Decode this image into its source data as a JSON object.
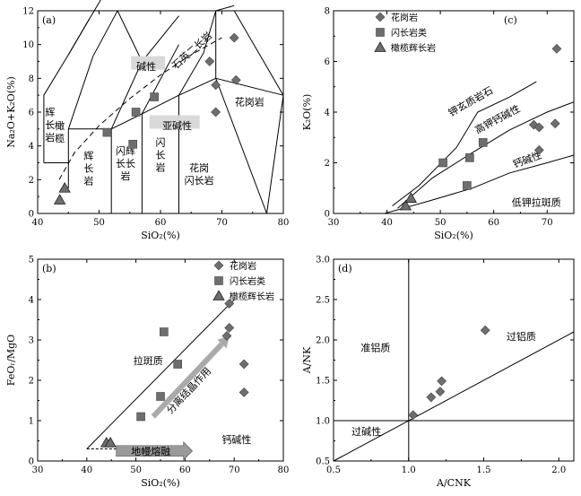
{
  "legend": {
    "granite": "花岗岩",
    "diorite": "闪长岩类",
    "gabbro": "橄榄辉长岩"
  },
  "chart_data": [
    {
      "panel": "(a)",
      "type": "scatter",
      "xlabel": "SiO₂(%)",
      "ylabel": "Na₂O+K₂O(%)",
      "xlim": [
        40,
        80
      ],
      "ylim": [
        0,
        12
      ],
      "xticks": [
        "40",
        "50",
        "60",
        "70",
        "80"
      ],
      "yticks": [
        "0",
        "2",
        "4",
        "6",
        "8",
        "10",
        "12"
      ],
      "fields": {
        "gabbro_olivine_1": "辉",
        "gabbro_olivine_2": "橄",
        "gabbro_olivine_3": "长",
        "gabbro_olivine_4": "榄",
        "gabbro_olivine_5": "岩",
        "gabbro_1": "辉",
        "gabbro_2": "长",
        "gabbro_3": "岩",
        "diorite_gabbro_1": "闪辉",
        "diorite_gabbro_2": "长长",
        "diorite_gabbro_3": "岩",
        "diorite_1": "闪",
        "diorite_2": "长",
        "diorite_3": "岩",
        "granodiorite_1": "花岗",
        "granodiorite_2": "闪长岩",
        "granite": "花岗岩",
        "quartz_syenite": "石英二长岩",
        "alkaline": "碱性",
        "subalkaline": "亚碱性"
      },
      "series": [
        {
          "name": "花岗岩",
          "marker": "diamond",
          "x": [
            68.0,
            69.0,
            72.3,
            72.0,
            69.0
          ],
          "y": [
            9.0,
            7.6,
            7.9,
            10.4,
            6.0
          ]
        },
        {
          "name": "闪长岩类",
          "marker": "square",
          "x": [
            51.3,
            55.5,
            56.0,
            59.0
          ],
          "y": [
            4.8,
            4.1,
            6.0,
            6.9
          ]
        },
        {
          "name": "橄榄辉长岩",
          "marker": "triangle",
          "x": [
            43.6,
            44.4
          ],
          "y": [
            0.8,
            1.5
          ]
        }
      ]
    },
    {
      "panel": "(b)",
      "type": "scatter",
      "xlabel": "SiO₂(%)",
      "ylabel": "FeOᵣ/MgO",
      "xlim": [
        30,
        80
      ],
      "ylim": [
        0,
        5
      ],
      "xticks": [
        "30",
        "40",
        "50",
        "60",
        "70",
        "80"
      ],
      "yticks": [
        "0",
        "1",
        "2",
        "3",
        "4",
        "5"
      ],
      "fields": {
        "tholeiitic": "拉斑质",
        "calcalkaline": "钙碱性",
        "fractional": "分离结晶作用",
        "mantle": "地幔熔融"
      },
      "series": [
        {
          "name": "花岗岩",
          "marker": "diamond",
          "x": [
            68.5,
            69.0,
            69.0,
            72.0,
            72.0
          ],
          "y": [
            3.1,
            3.3,
            3.9,
            2.4,
            1.7
          ]
        },
        {
          "name": "闪长岩类",
          "marker": "square",
          "x": [
            51.0,
            55.0,
            55.7,
            58.5
          ],
          "y": [
            1.1,
            1.6,
            3.2,
            2.4
          ]
        },
        {
          "name": "橄榄辉长岩",
          "marker": "triangle",
          "x": [
            44.0,
            44.8
          ],
          "y": [
            0.45,
            0.45
          ]
        }
      ]
    },
    {
      "panel": "(c)",
      "type": "scatter",
      "xlabel": "SiO₂(%)",
      "ylabel": "K₂O(%)",
      "xlim": [
        30,
        75
      ],
      "ylim": [
        0,
        8
      ],
      "xticks": [
        "30",
        "40",
        "50",
        "60",
        "70"
      ],
      "yticks": [
        "0",
        "2",
        "4",
        "6",
        "8"
      ],
      "fields": {
        "shoshonite": "钾玄质岩石",
        "highk": "高钾钙碱性",
        "calcalk": "钙碱性",
        "lowk": "低钾拉斑质"
      },
      "series": [
        {
          "name": "花岗岩",
          "marker": "diamond",
          "x": [
            67.5,
            68.5,
            68.5,
            71.5,
            71.8
          ],
          "y": [
            3.5,
            3.4,
            2.5,
            3.55,
            6.5
          ]
        },
        {
          "name": "闪长岩类",
          "marker": "square",
          "x": [
            50.5,
            55.0,
            55.5,
            58.0
          ],
          "y": [
            2.0,
            1.1,
            2.2,
            2.8
          ]
        },
        {
          "name": "橄榄辉长岩",
          "marker": "triangle",
          "x": [
            43.5,
            44.5
          ],
          "y": [
            0.3,
            0.6
          ]
        }
      ]
    },
    {
      "panel": "(d)",
      "type": "scatter",
      "xlabel": "A/CNK",
      "ylabel": "A/NK",
      "xlim": [
        0.5,
        2.1
      ],
      "ylim": [
        0.5,
        3.0
      ],
      "xticks": [
        "0.5",
        "1.0",
        "1.5",
        "2.0"
      ],
      "yticks": [
        "0.5",
        "1.0",
        "1.5",
        "2.0",
        "2.5",
        "3.0"
      ],
      "fields": {
        "metaluminous": "准铝质",
        "peraluminous": "过铝质",
        "peralkaline": "过碱性"
      },
      "series": [
        {
          "name": "花岗岩",
          "marker": "diamond",
          "x": [
            1.03,
            1.15,
            1.21,
            1.22,
            1.51
          ],
          "y": [
            1.07,
            1.29,
            1.36,
            1.49,
            2.12
          ]
        }
      ]
    }
  ]
}
